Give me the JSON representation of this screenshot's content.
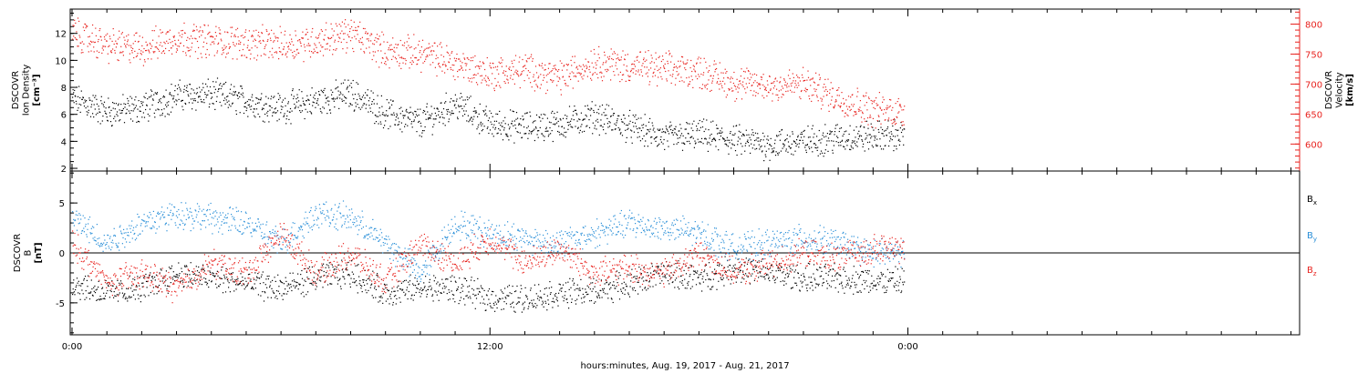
{
  "chart_data": [
    {
      "type": "scatter",
      "xlabel": "hours:minutes, Aug. 19, 2017 - Aug. 21, 2017",
      "x_ticks": [
        "0:00",
        "12:00",
        "0:00"
      ],
      "y_left": {
        "label_lines": [
          "DSCOVR",
          "Ion Density",
          "[cm⁻³]"
        ],
        "ticks": [
          2,
          4,
          6,
          8,
          10,
          12
        ],
        "range": [
          1.8,
          13.8
        ],
        "color": "#000000"
      },
      "y_right": {
        "label_lines": [
          "DSCOVR",
          "Velocity",
          "[km/s]"
        ],
        "ticks": [
          600,
          650,
          700,
          750,
          800
        ],
        "range": [
          555,
          825
        ],
        "color": "#e8231f"
      },
      "series": [
        {
          "axis": "left",
          "color": "#000000",
          "x_hours": [
            0,
            1,
            2,
            3,
            4,
            5,
            6,
            7,
            8,
            9,
            10,
            11,
            12,
            13,
            14,
            15,
            16,
            17,
            18,
            19,
            20,
            21,
            22,
            23,
            23.9
          ],
          "values": [
            7.2,
            6.2,
            6.5,
            7.4,
            7.5,
            7.0,
            6.5,
            7.0,
            7.6,
            6.1,
            5.4,
            6.8,
            5.3,
            5.1,
            5.3,
            5.9,
            5.1,
            4.3,
            4.5,
            4.1,
            3.8,
            4.0,
            4.3,
            4.4,
            4.5
          ]
        },
        {
          "axis": "right",
          "color": "#e8231f",
          "x_hours": [
            0,
            1,
            2,
            3,
            4,
            5,
            6,
            7,
            8,
            9,
            10,
            11,
            12,
            13,
            14,
            15,
            16,
            17,
            18,
            19,
            20,
            21,
            22,
            23,
            23.9
          ],
          "values": [
            785,
            765,
            760,
            778,
            772,
            770,
            766,
            772,
            785,
            755,
            752,
            735,
            718,
            724,
            712,
            738,
            730,
            725,
            722,
            702,
            698,
            700,
            678,
            657,
            655
          ]
        }
      ]
    },
    {
      "type": "scatter",
      "y_left": {
        "label_lines": [
          "DSCOVR",
          "B",
          "[nT]"
        ],
        "ticks": [
          -5,
          0,
          5
        ],
        "range": [
          -8.2,
          8.2
        ]
      },
      "legend": [
        {
          "name": "B",
          "sub": "x",
          "color": "#000000"
        },
        {
          "name": "B",
          "sub": "y",
          "color": "#2a8fd8"
        },
        {
          "name": "B",
          "sub": "z",
          "color": "#e8231f"
        }
      ],
      "series": [
        {
          "name": "Bx",
          "color": "#000000",
          "x_hours": [
            0,
            1,
            2,
            3,
            4,
            5,
            6,
            7,
            8,
            9,
            10,
            11,
            12,
            13,
            14,
            15,
            16,
            17,
            18,
            19,
            20,
            21,
            22,
            23,
            23.9
          ],
          "values": [
            -3.0,
            -4.0,
            -3.5,
            -2.0,
            -2.5,
            -3.0,
            -3.5,
            -2.5,
            -2.0,
            -4.0,
            -3.5,
            -3.5,
            -4.5,
            -4.5,
            -4.0,
            -3.8,
            -3.0,
            -2.0,
            -2.5,
            -1.5,
            -2.0,
            -2.5,
            -2.5,
            -2.8,
            -2.8
          ]
        },
        {
          "name": "By",
          "color": "#2a8fd8",
          "x_hours": [
            0,
            1,
            2,
            3,
            4,
            5,
            6,
            7,
            8,
            9,
            10,
            11,
            12,
            13,
            14,
            15,
            16,
            17,
            18,
            19,
            20,
            21,
            22,
            23,
            23.9
          ],
          "values": [
            3.5,
            1.0,
            3.0,
            4.0,
            3.5,
            3.0,
            1.0,
            4.0,
            3.5,
            1.0,
            -2.0,
            3.0,
            2.0,
            1.5,
            1.0,
            2.0,
            3.0,
            2.5,
            2.0,
            0.5,
            1.0,
            1.5,
            1.0,
            0.0,
            0.0
          ]
        },
        {
          "name": "Bz",
          "color": "#e8231f",
          "x_hours": [
            0,
            1,
            2,
            3,
            4,
            5,
            6,
            7,
            8,
            9,
            10,
            11,
            12,
            13,
            14,
            15,
            16,
            17,
            18,
            19,
            20,
            21,
            22,
            23,
            23.9
          ],
          "values": [
            1.0,
            -3.0,
            -2.0,
            -3.5,
            -1.0,
            -2.0,
            2.0,
            -2.0,
            0.0,
            -3.0,
            1.0,
            -1.0,
            1.5,
            -1.0,
            0.5,
            -2.0,
            -1.5,
            -2.0,
            0.0,
            -2.0,
            -1.0,
            0.0,
            -0.5,
            0.5,
            0.5
          ]
        }
      ]
    }
  ]
}
